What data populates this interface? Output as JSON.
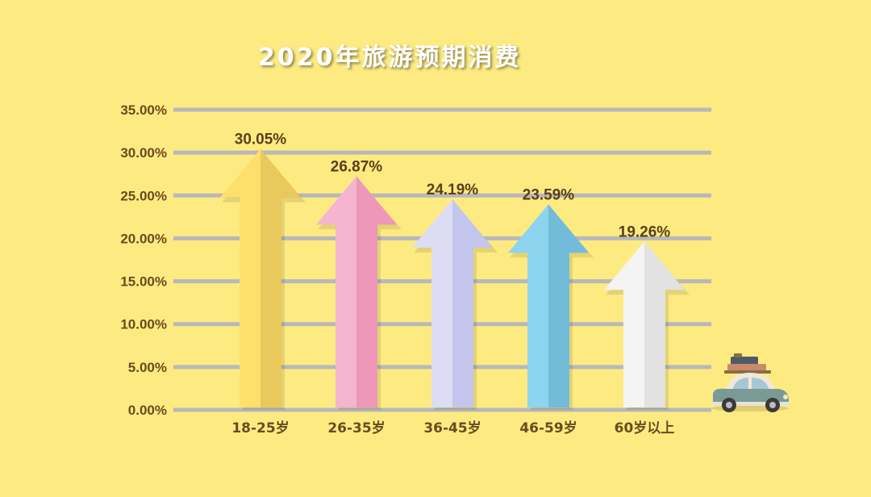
{
  "chart_data": {
    "type": "bar",
    "title": "2020年旅游预期消费",
    "categories": [
      "18-25岁",
      "26-35岁",
      "36-45岁",
      "46-59岁",
      "60岁以上"
    ],
    "values": [
      30.05,
      26.87,
      24.19,
      23.59,
      19.26
    ],
    "value_labels": [
      "30.05%",
      "26.87%",
      "24.19%",
      "23.59%",
      "19.26%"
    ],
    "y_ticks": [
      0,
      5,
      10,
      15,
      20,
      25,
      30,
      35
    ],
    "y_tick_labels": [
      "0.00%",
      "5.00%",
      "10.00%",
      "15.00%",
      "20.00%",
      "25.00%",
      "30.00%",
      "35.00%"
    ],
    "ylim": [
      0,
      35
    ],
    "grid": true,
    "legend": "none",
    "bar_style": "arrow",
    "colors": [
      {
        "light": "#FFDF6B",
        "dark": "#E9C85C"
      },
      {
        "light": "#F5B4CF",
        "dark": "#EE97B9"
      },
      {
        "light": "#DCDCF5",
        "dark": "#C3C5EC"
      },
      {
        "light": "#8DD4EE",
        "dark": "#72BCD9"
      },
      {
        "light": "#F4F4F4",
        "dark": "#E2E2E2"
      }
    ],
    "grid_color": "#B8B8B8",
    "decoration": "car-with-luggage-icon"
  }
}
